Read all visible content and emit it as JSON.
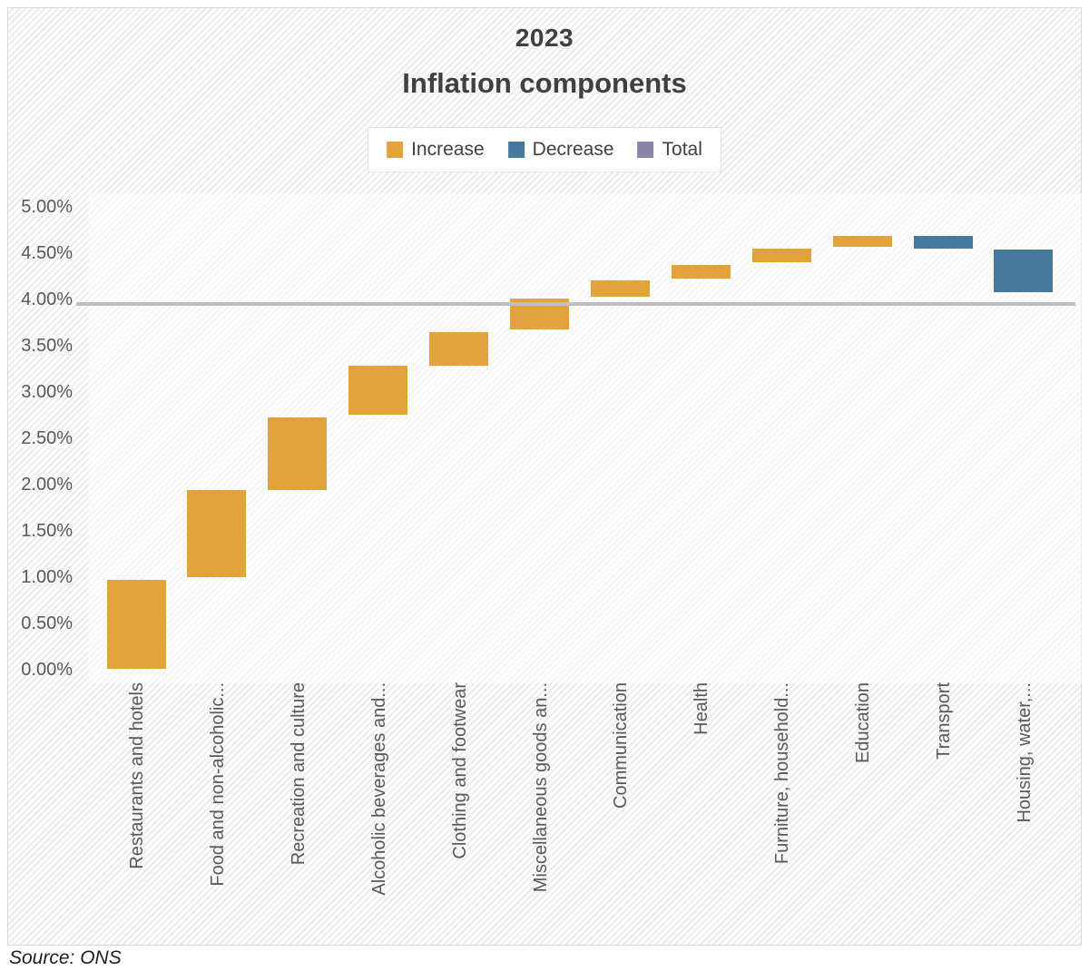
{
  "title": "2023",
  "subtitle": "Inflation components",
  "source": "Source: ONS",
  "colors": {
    "increase": "#E2A23C",
    "decrease": "#47799B",
    "total": "#8A84AB",
    "total_line": "#BFBFBF",
    "axis_text": "#595959",
    "title_text": "#404040"
  },
  "legend": [
    {
      "key": "increase",
      "label": "Increase",
      "color": "#E2A23C"
    },
    {
      "key": "decrease",
      "label": "Decrease",
      "color": "#47799B"
    },
    {
      "key": "total",
      "label": "Total",
      "color": "#8A84AB"
    }
  ],
  "chart_data": {
    "type": "waterfall",
    "title": "2023 Inflation components",
    "unit": "%",
    "y_axis": {
      "min": 0,
      "max": 5,
      "tick_step": 0.5,
      "ticks": [
        {
          "label": "5.00%",
          "value": 5.0
        },
        {
          "label": "4.50%",
          "value": 4.5
        },
        {
          "label": "4.00%",
          "value": 4.0
        },
        {
          "label": "3.50%",
          "value": 3.5
        },
        {
          "label": "3.00%",
          "value": 3.0
        },
        {
          "label": "2.50%",
          "value": 2.5
        },
        {
          "label": "2.00%",
          "value": 2.0
        },
        {
          "label": "1.50%",
          "value": 1.5
        },
        {
          "label": "1.00%",
          "value": 1.0
        },
        {
          "label": "0.50%",
          "value": 0.5
        },
        {
          "label": "0.00%",
          "value": 0.0
        }
      ]
    },
    "total_line": {
      "value": 3.95
    },
    "grid": "off",
    "legend_position": "top-center",
    "categories": [
      {
        "label": "Restaurants and hotels",
        "start": 0.01,
        "end": 0.97,
        "delta": 0.96,
        "direction": "increase"
      },
      {
        "label": "Food and non-alcoholic...",
        "start": 1.0,
        "end": 1.94,
        "delta": 0.94,
        "direction": "increase"
      },
      {
        "label": "Recreation and culture",
        "start": 1.94,
        "end": 2.73,
        "delta": 0.79,
        "direction": "increase"
      },
      {
        "label": "Alcoholic beverages and...",
        "start": 2.75,
        "end": 3.28,
        "delta": 0.53,
        "direction": "increase"
      },
      {
        "label": "Clothing and footwear",
        "start": 3.28,
        "end": 3.65,
        "delta": 0.37,
        "direction": "increase"
      },
      {
        "label": "Miscellaneous goods an...",
        "start": 3.68,
        "end": 4.01,
        "delta": 0.33,
        "direction": "increase"
      },
      {
        "label": "Communication",
        "start": 4.03,
        "end": 4.21,
        "delta": 0.18,
        "direction": "increase"
      },
      {
        "label": "Health",
        "start": 4.23,
        "end": 4.37,
        "delta": 0.14,
        "direction": "increase"
      },
      {
        "label": "Furniture, household...",
        "start": 4.4,
        "end": 4.55,
        "delta": 0.15,
        "direction": "increase"
      },
      {
        "label": "Education",
        "start": 4.57,
        "end": 4.69,
        "delta": 0.12,
        "direction": "increase"
      },
      {
        "label": "Transport",
        "start": 4.69,
        "end": 4.55,
        "delta": -0.14,
        "direction": "decrease"
      },
      {
        "label": "Housing, water,...",
        "start": 4.54,
        "end": 4.08,
        "delta": -0.46,
        "direction": "decrease"
      }
    ]
  }
}
